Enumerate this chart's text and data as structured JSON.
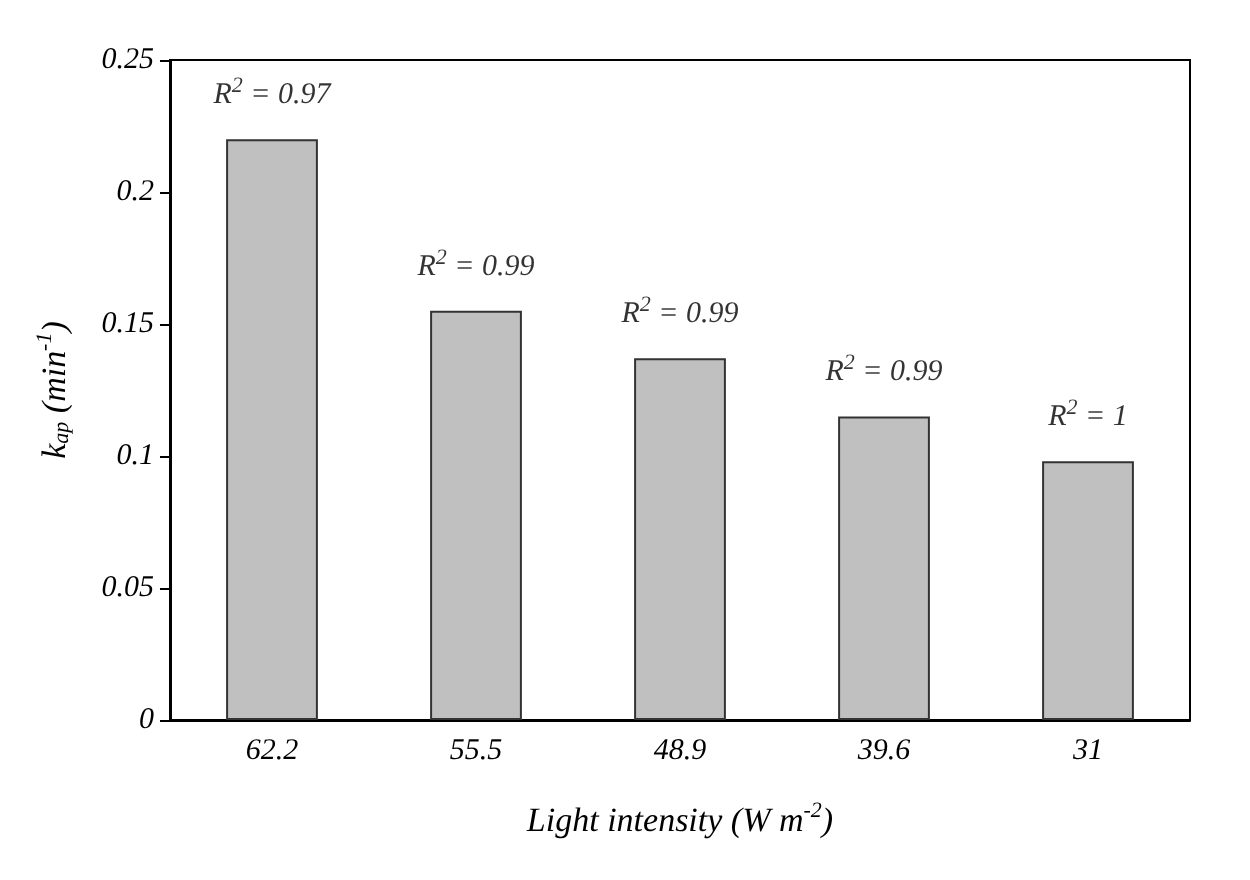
{
  "chart_data": {
    "type": "bar",
    "categories": [
      "62.2",
      "55.5",
      "48.9",
      "39.6",
      "31"
    ],
    "values": [
      0.22,
      0.155,
      0.137,
      0.115,
      0.098
    ],
    "color": "#c0c0c0",
    "xlabel": "Light intensity (W m$^{-2}$)",
    "ylabel": "k$_{ap}$ (min$^{-1}$)",
    "ylim": [
      0,
      0.25
    ],
    "yticks": [
      0,
      0.05,
      0.1,
      0.15,
      0.2,
      0.25
    ],
    "grid": false,
    "annotations": [
      {
        "text": "R$^{2}$ = 0.97",
        "x": "62.2",
        "y": 0.22
      },
      {
        "text": "R$^{2}$ = 0.99",
        "x": "55.5",
        "y": 0.155
      },
      {
        "text": "R$^{2}$ = 0.99",
        "x": "48.9",
        "y": 0.137
      },
      {
        "text": "R$^{2}$ = 0.99",
        "x": "39.6",
        "y": 0.115
      },
      {
        "text": "R$^{2}$ = 1",
        "x": "31",
        "y": 0.098
      }
    ]
  }
}
